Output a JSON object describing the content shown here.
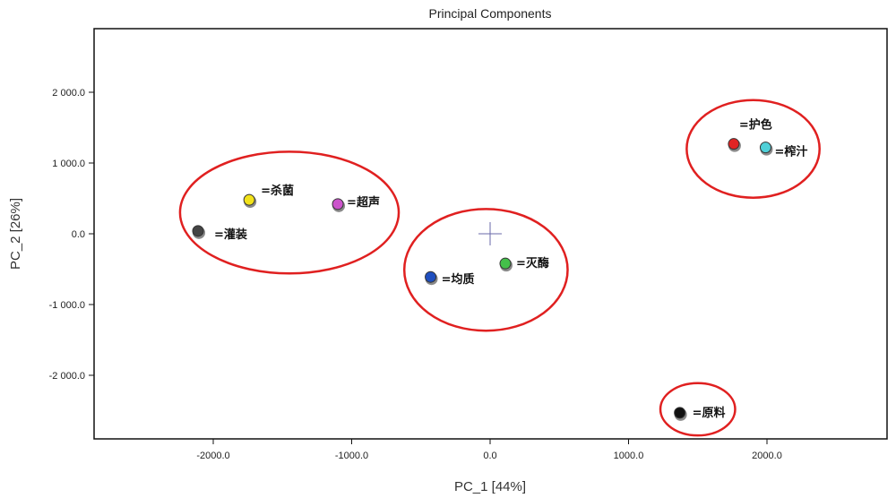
{
  "chart_data": {
    "type": "scatter",
    "title": "Principal Components",
    "xlabel": "PC_1 [44%]",
    "ylabel": "PC_2 [26%]",
    "xlim": [
      -2800,
      2800
    ],
    "ylim": [
      -2900,
      2900
    ],
    "x_ticks": [
      -2000,
      -1000,
      0,
      1000,
      2000
    ],
    "x_tick_labels": [
      "-2000.0",
      "-1000.0",
      "0.0",
      "1000.0",
      "2000.0"
    ],
    "y_ticks": [
      2000,
      1000,
      0,
      -1000,
      -2000
    ],
    "y_tick_labels": [
      "2 000.0",
      "1 000.0",
      "0.0",
      "-1 000.0",
      "-2 000.0"
    ],
    "grid": false,
    "origin_marker": "cross",
    "points": [
      {
        "label": "=灌装",
        "x": -2110,
        "y": 40,
        "color": "#444444"
      },
      {
        "label": "=杀菌",
        "x": -1740,
        "y": 480,
        "color": "#f2e21a"
      },
      {
        "label": "=超声",
        "x": -1100,
        "y": 420,
        "color": "#cc55cc"
      },
      {
        "label": "=均质",
        "x": -430,
        "y": -610,
        "color": "#1f4fbf"
      },
      {
        "label": "=灭酶",
        "x": 110,
        "y": -420,
        "color": "#44c04a"
      },
      {
        "label": "=护色",
        "x": 1760,
        "y": 1270,
        "color": "#e02424"
      },
      {
        "label": "=榨汁",
        "x": 1990,
        "y": 1220,
        "color": "#4fd0d8"
      },
      {
        "label": "=原料",
        "x": 1370,
        "y": -2530,
        "color": "#111111"
      }
    ],
    "groups": [
      {
        "members": [
          "=灌装",
          "=杀菌",
          "=超声"
        ],
        "cx": -1450,
        "cy": 300,
        "rx": 790,
        "ry": 860,
        "color": "#e02020"
      },
      {
        "members": [
          "=均质",
          "=灭酶"
        ],
        "cx": -30,
        "cy": -510,
        "rx": 590,
        "ry": 860,
        "color": "#e02020"
      },
      {
        "members": [
          "=护色",
          "=榨汁"
        ],
        "cx": 1900,
        "cy": 1200,
        "rx": 480,
        "ry": 690,
        "color": "#e02020"
      },
      {
        "members": [
          "=原料"
        ],
        "cx": 1500,
        "cy": -2480,
        "rx": 270,
        "ry": 370,
        "color": "#e02020"
      }
    ]
  }
}
